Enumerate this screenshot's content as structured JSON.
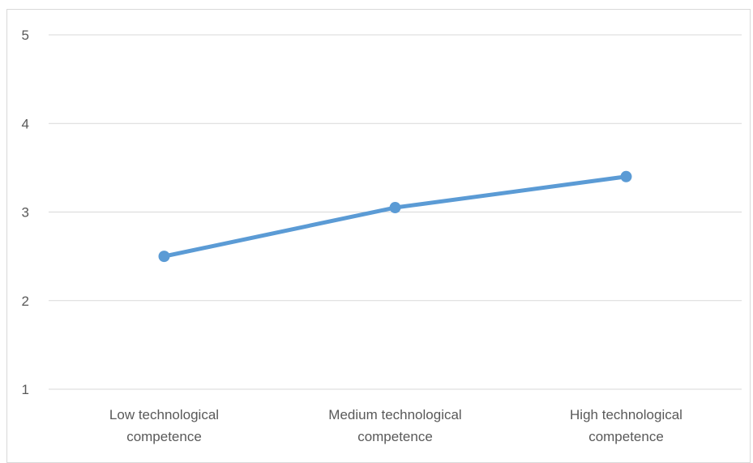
{
  "chart_data": {
    "type": "line",
    "title": "",
    "xlabel": "",
    "ylabel": "",
    "categories": [
      [
        "Low technological",
        "competence"
      ],
      [
        "Medium technological",
        "competence"
      ],
      [
        "High technological",
        "competence"
      ]
    ],
    "series": [
      {
        "values": [
          2.5,
          3.05,
          3.4
        ],
        "color": "#5b9bd5"
      }
    ],
    "ylim": [
      1,
      5
    ],
    "yticks": [
      "1",
      "2",
      "3",
      "4",
      "5"
    ],
    "grid": true,
    "legend": "none"
  }
}
